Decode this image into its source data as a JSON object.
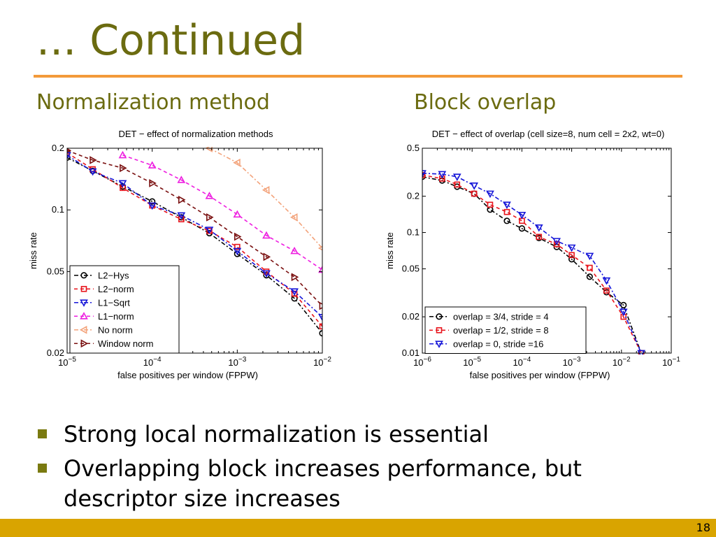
{
  "slide": {
    "title": "... Continued",
    "left_heading": "Normalization method",
    "right_heading": "Block overlap",
    "bullets": [
      "Strong local normalization is essential",
      "Overlapping block increases performance, but descriptor size increases"
    ],
    "page_number": "18"
  },
  "chart_data": [
    {
      "type": "line",
      "title": "DET − effect of normalization methods",
      "xlabel": "false positives per window (FPPW)",
      "ylabel": "miss rate",
      "xscale": "log",
      "yscale": "log",
      "xlim": [
        1e-05,
        0.01
      ],
      "ylim": [
        0.02,
        0.2
      ],
      "x_ticks": [
        1e-05,
        0.0001,
        0.001,
        0.01
      ],
      "x_tick_labels": [
        {
          "base": "10",
          "exp": "−5"
        },
        {
          "base": "10",
          "exp": "−4"
        },
        {
          "base": "10",
          "exp": "−3"
        },
        {
          "base": "10",
          "exp": "−2"
        }
      ],
      "y_ticks": [
        0.02,
        0.05,
        0.1,
        0.2
      ],
      "y_tick_labels": [
        "0.02",
        "0.05",
        "0.1",
        "0.2"
      ],
      "grid": false,
      "legend_position": "bottom-left",
      "series": [
        {
          "name": "L2−Hys",
          "color": "#000000",
          "marker": "circle",
          "dash": "6,3,2,3",
          "x": [
            1e-05,
            2e-05,
            4.5e-05,
            0.0001,
            0.00022,
            0.00047,
            0.001,
            0.0022,
            0.0047,
            0.01
          ],
          "y": [
            0.18,
            0.155,
            0.13,
            0.11,
            0.092,
            0.077,
            0.061,
            0.048,
            0.037,
            0.025
          ]
        },
        {
          "name": "L2−norm",
          "color": "#e8141c",
          "marker": "square",
          "dash": "5,4",
          "x": [
            1e-05,
            2e-05,
            4.5e-05,
            0.0001,
            0.00022,
            0.00047,
            0.001,
            0.0022,
            0.0047,
            0.01
          ],
          "y": [
            0.19,
            0.158,
            0.128,
            0.105,
            0.09,
            0.079,
            0.066,
            0.05,
            0.039,
            0.027
          ]
        },
        {
          "name": "L1−Sqrt",
          "color": "#1515d8",
          "marker": "triangle-down",
          "dash": "6,3,2,3",
          "x": [
            1e-05,
            2e-05,
            4.5e-05,
            0.0001,
            0.00022,
            0.00047,
            0.001,
            0.0022,
            0.0047,
            0.01
          ],
          "y": [
            0.185,
            0.154,
            0.135,
            0.105,
            0.094,
            0.08,
            0.063,
            0.049,
            0.04,
            0.03
          ]
        },
        {
          "name": "L1−norm",
          "color": "#ee1ee0",
          "marker": "triangle-up",
          "dash": "5,4",
          "x": [
            4.5e-05,
            0.0001,
            0.00022,
            0.00047,
            0.001,
            0.0022,
            0.0047,
            0.01
          ],
          "y": [
            0.185,
            0.165,
            0.14,
            0.117,
            0.095,
            0.075,
            0.063,
            0.051
          ]
        },
        {
          "name": "No norm",
          "color": "#f3a37b",
          "marker": "triangle-left",
          "dash": "6,3,2,3",
          "x": [
            0.00047,
            0.001,
            0.0022,
            0.0047,
            0.01
          ],
          "y": [
            0.2,
            0.17,
            0.125,
            0.092,
            0.065
          ]
        },
        {
          "name": "Window norm",
          "color": "#7a1010",
          "marker": "triangle-right",
          "dash": "5,4",
          "x": [
            1e-05,
            2e-05,
            4.5e-05,
            0.0001,
            0.00022,
            0.00047,
            0.001,
            0.0022,
            0.0047,
            0.01
          ],
          "y": [
            0.195,
            0.175,
            0.16,
            0.135,
            0.112,
            0.092,
            0.074,
            0.059,
            0.047,
            0.034
          ]
        }
      ]
    },
    {
      "type": "line",
      "title": "DET − effect of overlap (cell size=8, num cell = 2x2, wt=0)",
      "xlabel": "false positives per window (FPPW)",
      "ylabel": "miss rate",
      "xscale": "log",
      "yscale": "log",
      "xlim": [
        1e-06,
        0.1
      ],
      "ylim": [
        0.01,
        0.5
      ],
      "x_ticks": [
        1e-06,
        1e-05,
        0.0001,
        0.001,
        0.01,
        0.1
      ],
      "x_tick_labels": [
        {
          "base": "10",
          "exp": "−6"
        },
        {
          "base": "10",
          "exp": "−5"
        },
        {
          "base": "10",
          "exp": "−4"
        },
        {
          "base": "10",
          "exp": "−3"
        },
        {
          "base": "10",
          "exp": "−2"
        },
        {
          "base": "10",
          "exp": "−1"
        }
      ],
      "y_ticks": [
        0.01,
        0.02,
        0.05,
        0.1,
        0.2,
        0.5
      ],
      "y_tick_labels": [
        "0.01",
        "0.02",
        "0.05",
        "0.1",
        "0.2",
        "0.5"
      ],
      "grid": false,
      "legend_position": "bottom-left",
      "series": [
        {
          "name": "overlap = 3/4, stride =  4",
          "color": "#000000",
          "marker": "circle",
          "dash": "6,3,2,3",
          "x": [
            1e-06,
            2.5e-06,
            5e-06,
            1.1e-05,
            2.3e-05,
            5e-05,
            0.0001,
            0.00022,
            0.0005,
            0.001,
            0.0023,
            0.005,
            0.011,
            0.025
          ],
          "y": [
            0.29,
            0.27,
            0.24,
            0.21,
            0.155,
            0.125,
            0.108,
            0.09,
            0.076,
            0.06,
            0.043,
            0.032,
            0.025,
            0.01
          ]
        },
        {
          "name": "overlap = 1/2, stride =  8",
          "color": "#e8141c",
          "marker": "square",
          "dash": "5,4",
          "x": [
            1e-06,
            2.5e-06,
            5e-06,
            1.1e-05,
            2.3e-05,
            5e-05,
            0.0001,
            0.00022,
            0.0005,
            0.001,
            0.0023,
            0.005,
            0.011,
            0.025
          ],
          "y": [
            0.3,
            0.28,
            0.25,
            0.21,
            0.17,
            0.148,
            0.125,
            0.092,
            0.08,
            0.065,
            0.051,
            0.033,
            0.02,
            0.01
          ]
        },
        {
          "name": "overlap =    0, stride =16",
          "color": "#1515d8",
          "marker": "triangle-down",
          "dash": "6,3,2,3",
          "x": [
            1e-06,
            2.5e-06,
            5e-06,
            1.1e-05,
            2.3e-05,
            5e-05,
            0.0001,
            0.00022,
            0.0005,
            0.001,
            0.0023,
            0.005,
            0.011,
            0.025
          ],
          "y": [
            0.31,
            0.305,
            0.29,
            0.245,
            0.21,
            0.17,
            0.14,
            0.11,
            0.085,
            0.075,
            0.064,
            0.04,
            0.022,
            0.01
          ]
        }
      ]
    }
  ]
}
